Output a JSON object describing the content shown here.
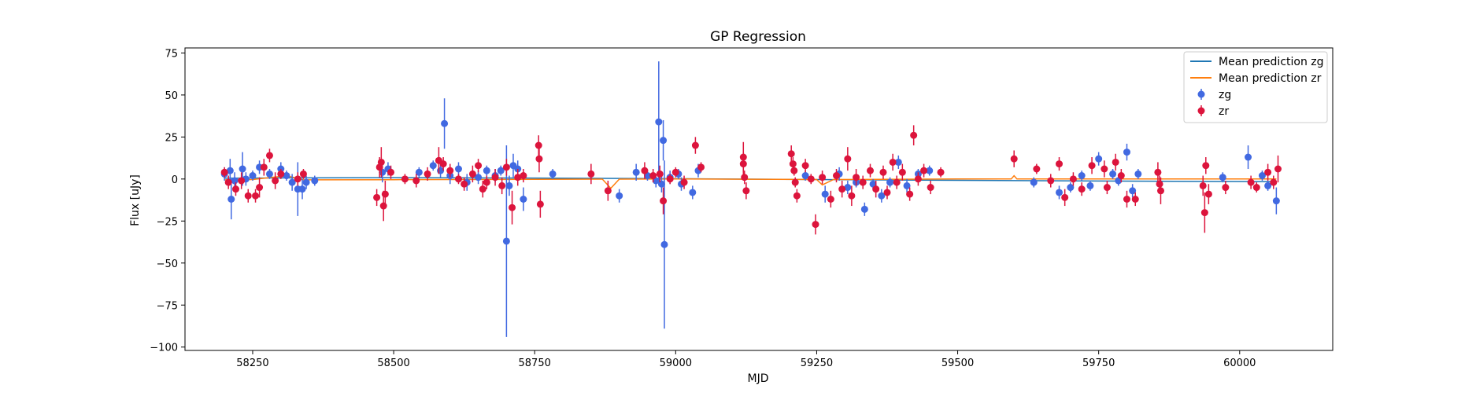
{
  "chart_data": {
    "type": "scatter",
    "title": "GP Regression",
    "xlabel": "MJD",
    "ylabel": "Flux [uJy]",
    "xlim": [
      58130,
      60165
    ],
    "ylim": [
      -102,
      78
    ],
    "x_ticks": [
      58250,
      58500,
      58750,
      59000,
      59250,
      59500,
      59750,
      60000
    ],
    "y_ticks": [
      75,
      50,
      25,
      0,
      -25,
      -50,
      -75,
      -100
    ],
    "y_tick_labels": [
      "75",
      "50",
      "25",
      "0",
      "−25",
      "−50",
      "−75",
      "−100"
    ],
    "legend_position": "upper right",
    "series": [
      {
        "name": "Mean prediction zg",
        "kind": "line",
        "color": "#1f77b4",
        "x": [
          58200,
          58250,
          58500,
          58750,
          59000,
          59250,
          59500,
          59750,
          60000,
          60065
        ],
        "y": [
          0.5,
          0.6,
          0.8,
          0.6,
          0.2,
          -0.3,
          -0.8,
          -1.2,
          -1.5,
          -1.6
        ]
      },
      {
        "name": "Mean prediction zr",
        "kind": "line",
        "color": "#ff7f0e",
        "x": [
          58200,
          58250,
          58310,
          58340,
          58500,
          58750,
          58870,
          58885,
          58900,
          59000,
          59250,
          59260,
          59280,
          59500,
          59595,
          59600,
          59605,
          59750,
          59900,
          60000,
          60065
        ],
        "y": [
          -0.5,
          -0.3,
          2.0,
          -0.5,
          -0.4,
          -0.2,
          -0.1,
          -5.5,
          -0.1,
          0.0,
          -0.3,
          -3.5,
          -0.3,
          0.0,
          0.0,
          2.0,
          0.0,
          0.0,
          0.0,
          0.0,
          0.0
        ]
      },
      {
        "name": "zg",
        "kind": "errorbar",
        "color": "#4169e1",
        "points": [
          [
            58200,
            3,
            4
          ],
          [
            58210,
            5,
            7
          ],
          [
            58212,
            -12,
            12
          ],
          [
            58218,
            -1,
            5
          ],
          [
            58232,
            6,
            10
          ],
          [
            58238,
            0,
            4
          ],
          [
            58250,
            2,
            3
          ],
          [
            58262,
            7,
            4
          ],
          [
            58280,
            3,
            3
          ],
          [
            58300,
            6,
            4
          ],
          [
            58310,
            2,
            3
          ],
          [
            58320,
            -2,
            5
          ],
          [
            58330,
            -6,
            16
          ],
          [
            58338,
            -6,
            6
          ],
          [
            58345,
            -2,
            4
          ],
          [
            58360,
            -1,
            3
          ],
          [
            58480,
            4,
            6
          ],
          [
            58490,
            6,
            4
          ],
          [
            58545,
            4,
            3
          ],
          [
            58570,
            8,
            3
          ],
          [
            58583,
            5,
            4
          ],
          [
            58590,
            33,
            15
          ],
          [
            58600,
            2,
            5
          ],
          [
            58615,
            6,
            4
          ],
          [
            58630,
            -2,
            5
          ],
          [
            58650,
            1,
            4
          ],
          [
            58665,
            5,
            3
          ],
          [
            58680,
            2,
            4
          ],
          [
            58690,
            5,
            3
          ],
          [
            58700,
            -37,
            57
          ],
          [
            58705,
            -4,
            6
          ],
          [
            58712,
            8,
            7
          ],
          [
            58720,
            6,
            5
          ],
          [
            58730,
            -12,
            7
          ],
          [
            58782,
            3,
            3
          ],
          [
            58900,
            -10,
            4
          ],
          [
            58930,
            4,
            5
          ],
          [
            58950,
            2,
            3
          ],
          [
            58965,
            -1,
            4
          ],
          [
            58970,
            34,
            36
          ],
          [
            58975,
            -3,
            5
          ],
          [
            58978,
            23,
            12
          ],
          [
            58980,
            -39,
            50
          ],
          [
            58990,
            1,
            4
          ],
          [
            59005,
            3,
            3
          ],
          [
            59010,
            -3,
            4
          ],
          [
            59030,
            -8,
            4
          ],
          [
            59040,
            5,
            4
          ],
          [
            59230,
            2,
            3
          ],
          [
            59265,
            -9,
            5
          ],
          [
            59290,
            3,
            4
          ],
          [
            59305,
            -5,
            4
          ],
          [
            59320,
            -2,
            3
          ],
          [
            59335,
            -18,
            4
          ],
          [
            59350,
            -3,
            3
          ],
          [
            59365,
            -10,
            4
          ],
          [
            59380,
            -2,
            3
          ],
          [
            59395,
            10,
            4
          ],
          [
            59410,
            -4,
            4
          ],
          [
            59430,
            3,
            3
          ],
          [
            59450,
            5,
            3
          ],
          [
            59635,
            -2,
            3
          ],
          [
            59680,
            -8,
            4
          ],
          [
            59700,
            -5,
            3
          ],
          [
            59720,
            2,
            3
          ],
          [
            59735,
            -4,
            3
          ],
          [
            59750,
            12,
            4
          ],
          [
            59775,
            3,
            3
          ],
          [
            59785,
            -1,
            3
          ],
          [
            59800,
            16,
            5
          ],
          [
            59810,
            -7,
            4
          ],
          [
            59820,
            3,
            3
          ],
          [
            59970,
            1,
            3
          ],
          [
            60015,
            13,
            7
          ],
          [
            60040,
            2,
            3
          ],
          [
            60050,
            -4,
            3
          ],
          [
            60065,
            -13,
            8
          ]
        ]
      },
      {
        "name": "zr",
        "kind": "errorbar",
        "color": "#dc143c",
        "points": [
          [
            58200,
            4,
            3
          ],
          [
            58207,
            -2,
            4
          ],
          [
            58220,
            -6,
            4
          ],
          [
            58230,
            -1,
            5
          ],
          [
            58242,
            -10,
            4
          ],
          [
            58255,
            -10,
            4
          ],
          [
            58262,
            -5,
            6
          ],
          [
            58270,
            7,
            5
          ],
          [
            58280,
            14,
            4
          ],
          [
            58290,
            -1,
            5
          ],
          [
            58300,
            3,
            3
          ],
          [
            58330,
            0,
            4
          ],
          [
            58340,
            3,
            3
          ],
          [
            58470,
            -11,
            5
          ],
          [
            58475,
            7,
            6
          ],
          [
            58478,
            10,
            9
          ],
          [
            58482,
            -16,
            9
          ],
          [
            58485,
            -9,
            8
          ],
          [
            58495,
            4,
            4
          ],
          [
            58520,
            0,
            3
          ],
          [
            58540,
            -1,
            4
          ],
          [
            58560,
            3,
            4
          ],
          [
            58580,
            11,
            8
          ],
          [
            58588,
            9,
            4
          ],
          [
            58600,
            5,
            4
          ],
          [
            58615,
            0,
            3
          ],
          [
            58625,
            -3,
            4
          ],
          [
            58640,
            3,
            5
          ],
          [
            58650,
            8,
            4
          ],
          [
            58658,
            -6,
            5
          ],
          [
            58665,
            -2,
            4
          ],
          [
            58680,
            1,
            5
          ],
          [
            58692,
            -4,
            5
          ],
          [
            58700,
            7,
            5
          ],
          [
            58710,
            -17,
            10
          ],
          [
            58720,
            1,
            5
          ],
          [
            58730,
            2,
            4
          ],
          [
            58757,
            20,
            6
          ],
          [
            58758,
            12,
            8
          ],
          [
            58760,
            -15,
            8
          ],
          [
            58850,
            3,
            6
          ],
          [
            58880,
            -7,
            6
          ],
          [
            58945,
            5,
            5
          ],
          [
            58960,
            2,
            4
          ],
          [
            58972,
            3,
            5
          ],
          [
            58978,
            -13,
            8
          ],
          [
            58990,
            0,
            3
          ],
          [
            59000,
            4,
            3
          ],
          [
            59015,
            -2,
            4
          ],
          [
            59035,
            20,
            5
          ],
          [
            59045,
            7,
            3
          ],
          [
            59120,
            13,
            9
          ],
          [
            59120,
            9,
            7
          ],
          [
            59122,
            1,
            4
          ],
          [
            59125,
            -7,
            5
          ],
          [
            59205,
            15,
            5
          ],
          [
            59208,
            9,
            4
          ],
          [
            59210,
            5,
            3
          ],
          [
            59212,
            -2,
            3
          ],
          [
            59215,
            -10,
            4
          ],
          [
            59230,
            8,
            4
          ],
          [
            59240,
            0,
            3
          ],
          [
            59248,
            -27,
            6
          ],
          [
            59260,
            1,
            4
          ],
          [
            59275,
            -12,
            5
          ],
          [
            59285,
            2,
            4
          ],
          [
            59295,
            -6,
            5
          ],
          [
            59305,
            12,
            7
          ],
          [
            59312,
            -10,
            6
          ],
          [
            59320,
            1,
            5
          ],
          [
            59332,
            -2,
            4
          ],
          [
            59345,
            5,
            4
          ],
          [
            59355,
            -6,
            5
          ],
          [
            59368,
            4,
            4
          ],
          [
            59375,
            -8,
            4
          ],
          [
            59385,
            10,
            5
          ],
          [
            59392,
            -2,
            4
          ],
          [
            59402,
            4,
            5
          ],
          [
            59415,
            -9,
            4
          ],
          [
            59422,
            26,
            6
          ],
          [
            59430,
            0,
            4
          ],
          [
            59440,
            5,
            4
          ],
          [
            59452,
            -5,
            4
          ],
          [
            59470,
            4,
            3
          ],
          [
            59600,
            12,
            5
          ],
          [
            59640,
            6,
            3
          ],
          [
            59665,
            -1,
            4
          ],
          [
            59680,
            9,
            4
          ],
          [
            59690,
            -11,
            5
          ],
          [
            59705,
            0,
            4
          ],
          [
            59720,
            -6,
            4
          ],
          [
            59738,
            8,
            5
          ],
          [
            59760,
            6,
            5
          ],
          [
            59765,
            -5,
            4
          ],
          [
            59780,
            10,
            5
          ],
          [
            59790,
            2,
            4
          ],
          [
            59800,
            -12,
            5
          ],
          [
            59815,
            -12,
            4
          ],
          [
            59855,
            4,
            6
          ],
          [
            59858,
            -3,
            5
          ],
          [
            59860,
            -7,
            8
          ],
          [
            59935,
            -4,
            6
          ],
          [
            59938,
            -20,
            12
          ],
          [
            59940,
            8,
            5
          ],
          [
            59945,
            -9,
            6
          ],
          [
            59975,
            -5,
            4
          ],
          [
            60020,
            -2,
            4
          ],
          [
            60030,
            -5,
            3
          ],
          [
            60050,
            4,
            5
          ],
          [
            60060,
            -2,
            4
          ],
          [
            60068,
            6,
            8
          ]
        ]
      }
    ]
  }
}
